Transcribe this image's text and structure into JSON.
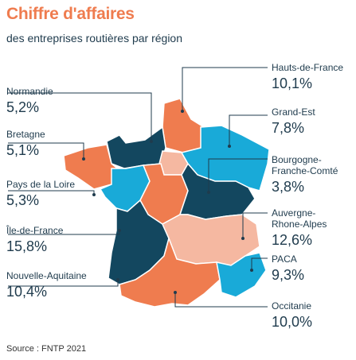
{
  "header": {
    "title": "Chiffre d'affaires",
    "subtitle": "des entreprises routières par région"
  },
  "source": "Source : FNTP 2021",
  "colors": {
    "dark": "#13475f",
    "orange": "#ef7c4f",
    "cyan": "#19aad8",
    "peach": "#f5b8a1",
    "text": "#1f3b4d"
  },
  "regions": [
    {
      "name": "Normandie",
      "value": "5,2%"
    },
    {
      "name": "Bretagne",
      "value": "5,1%"
    },
    {
      "name": "Pays de la Loire",
      "value": "5,3%"
    },
    {
      "name": "Île-de-France",
      "value": "15,8%"
    },
    {
      "name": "Nouvelle-Aquitaine",
      "value": "10,4%"
    },
    {
      "name": "Hauts-de-France",
      "value": "10,1%"
    },
    {
      "name": "Grand-Est",
      "value": "7,8%"
    },
    {
      "name": "Bourgogne-\nFranche-Comté",
      "value": "3,8%"
    },
    {
      "name": "Auvergne-\nRhone-Alpes",
      "value": "12,6%"
    },
    {
      "name": "PACA",
      "value": "9,3%"
    },
    {
      "name": "Occitanie",
      "value": "10,0%"
    }
  ]
}
